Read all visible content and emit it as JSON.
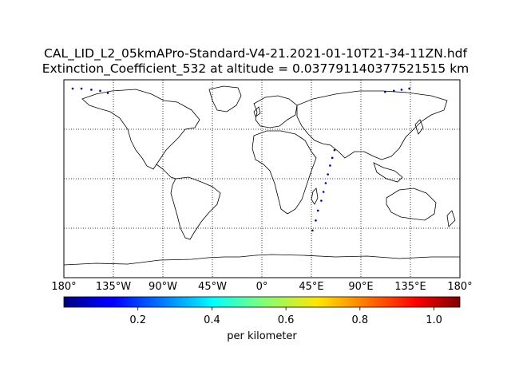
{
  "figure": {
    "title_line1": "CAL_LID_L2_05kmAPro-Standard-V4-21.2021-01-10T21-34-11ZN.hdf",
    "title_line2": "Extinction_Coefficient_532 at altitude = 0.037791140377521515 km"
  },
  "map": {
    "projection": "cylindrical (equirectangular)",
    "lon_range": [
      -180,
      180
    ],
    "lat_range": [
      -90,
      90
    ],
    "meridians": [
      -180,
      -135,
      -90,
      -45,
      0,
      45,
      90,
      135,
      180
    ],
    "meridian_labels": [
      "180°",
      "135°W",
      "90°W",
      "45°W",
      "0°",
      "45°E",
      "90°E",
      "135°E",
      "180°"
    ],
    "parallels": [
      -45,
      0,
      45
    ],
    "grid_style": "dotted",
    "coastline_color": "#000000"
  },
  "chart_data": {
    "type": "scatter",
    "x_label": "",
    "y_label": "",
    "xlim": [
      -180,
      180
    ],
    "ylim": [
      -90,
      90
    ],
    "series": [
      {
        "points": [
          {
            "lon": 66,
            "lat": 26,
            "value": 0.02
          },
          {
            "lon": 64,
            "lat": 19,
            "value": 0.03
          },
          {
            "lon": 62,
            "lat": 12,
            "value": 0.04
          },
          {
            "lon": 60,
            "lat": 4,
            "value": 0.02
          },
          {
            "lon": 58,
            "lat": -4,
            "value": 0.05
          },
          {
            "lon": 56,
            "lat": -12,
            "value": 0.03
          },
          {
            "lon": 54,
            "lat": -20,
            "value": 0.02
          },
          {
            "lon": 51,
            "lat": -29,
            "value": 0.04
          },
          {
            "lon": 49,
            "lat": -38,
            "value": 0.03
          },
          {
            "lon": 46,
            "lat": -47,
            "value": 0.02
          },
          {
            "lon": -172,
            "lat": 82,
            "value": 0.03
          },
          {
            "lon": -164,
            "lat": 82,
            "value": 0.02
          },
          {
            "lon": -155,
            "lat": 81,
            "value": 0.04
          },
          {
            "lon": -147,
            "lat": 80,
            "value": 0.03
          },
          {
            "lon": -140,
            "lat": 78,
            "value": 0.02
          },
          {
            "lon": 112,
            "lat": 79,
            "value": 0.03
          },
          {
            "lon": 120,
            "lat": 80,
            "value": 0.02
          },
          {
            "lon": 127,
            "lat": 81,
            "value": 0.04
          },
          {
            "lon": 134,
            "lat": 82,
            "value": 0.02
          }
        ]
      }
    ]
  },
  "colorbar": {
    "label": "per kilometer",
    "colormap": "jet",
    "range": [
      0.0,
      1.07
    ],
    "ticks": [
      0.2,
      0.4,
      0.6,
      0.8,
      1.0
    ],
    "tick_labels": [
      "0.2",
      "0.4",
      "0.6",
      "0.8",
      "1.0"
    ]
  }
}
